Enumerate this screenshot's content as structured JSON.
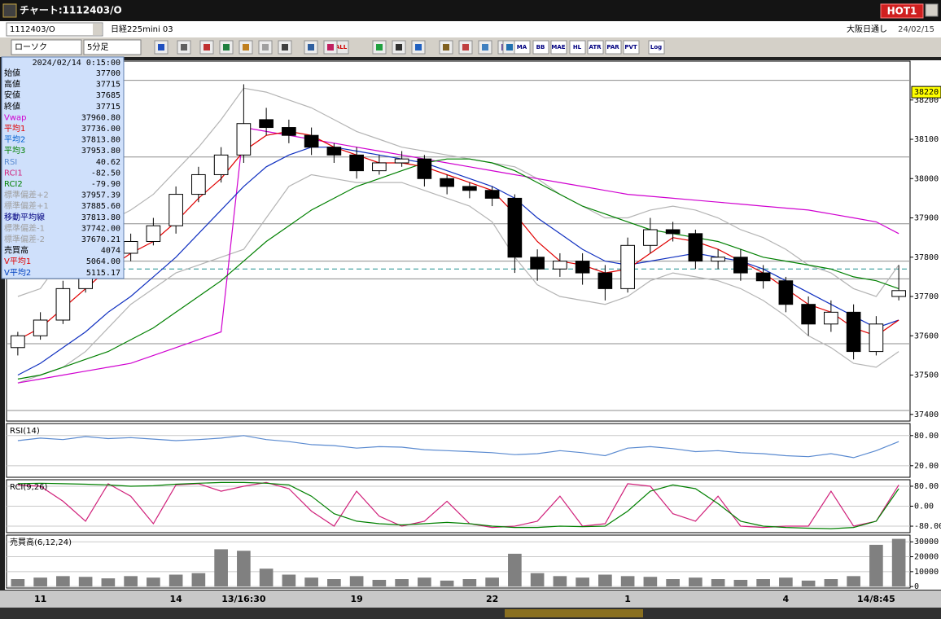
{
  "window": {
    "title": "チャート:1112403/O",
    "hot_button": "HOT1"
  },
  "toolbar": {
    "symbol": "1112403/O",
    "name": "日経225mini 03",
    "market": "大阪日通し",
    "date": "24/02/15",
    "chart_type": "ローソク",
    "interval": "5分足",
    "all_button": "ALL",
    "indicators": [
      "MA",
      "BB",
      "MAE",
      "HL",
      "ATR",
      "PAR",
      "PVT",
      "Log"
    ]
  },
  "info_panel": {
    "datetime": "2024/02/14 0:15:00",
    "rows": [
      {
        "label": "始値",
        "value": "37700",
        "color": "#000000"
      },
      {
        "label": "高値",
        "value": "37715",
        "color": "#000000"
      },
      {
        "label": "安値",
        "value": "37685",
        "color": "#000000"
      },
      {
        "label": "終値",
        "value": "37715",
        "color": "#000000"
      },
      {
        "label": "Vwap",
        "value": "37960.80",
        "color": "#d000d0"
      },
      {
        "label": "平均1",
        "value": "37736.00",
        "color": "#e00000"
      },
      {
        "label": "平均2",
        "value": "37813.80",
        "color": "#0060d0"
      },
      {
        "label": "平均3",
        "value": "37953.80",
        "color": "#008000"
      },
      {
        "label": "RSI",
        "value": "40.62",
        "color": "#5a8ad0"
      },
      {
        "label": "RCI1",
        "value": "-82.50",
        "color": "#d0207a"
      },
      {
        "label": "RCI2",
        "value": "-79.90",
        "color": "#008000"
      },
      {
        "label": "標準偏差+2",
        "value": "37957.39",
        "color": "#a0a0a0"
      },
      {
        "label": "標準偏差+1",
        "value": "37885.60",
        "color": "#a0a0a0"
      },
      {
        "label": "移動平均線",
        "value": "37813.80",
        "color": "#000080"
      },
      {
        "label": "標準偏差-1",
        "value": "37742.00",
        "color": "#a0a0a0"
      },
      {
        "label": "標準偏差-2",
        "value": "37670.21",
        "color": "#a0a0a0"
      },
      {
        "label": "売買高",
        "value": "4074",
        "color": "#000000"
      },
      {
        "label": "V平均1",
        "value": "5064.00",
        "color": "#e00000"
      },
      {
        "label": "V平均2",
        "value": "5115.17",
        "color": "#0040c0"
      }
    ]
  },
  "chart_data": {
    "type": "candlestick",
    "categories": [
      null,
      "11",
      null,
      null,
      null,
      null,
      null,
      "14",
      null,
      null,
      "13/16:30",
      null,
      null,
      null,
      null,
      "19",
      null,
      null,
      null,
      null,
      null,
      "22",
      null,
      null,
      null,
      null,
      null,
      "1",
      null,
      null,
      null,
      null,
      null,
      null,
      "4",
      null,
      null,
      null,
      "14/8:45",
      null
    ],
    "open": [
      37570,
      37600,
      37640,
      37720,
      37780,
      37810,
      37840,
      37880,
      37960,
      38010,
      38060,
      38150,
      38130,
      38110,
      38080,
      38060,
      38020,
      38040,
      38050,
      38000,
      37980,
      37970,
      37950,
      37800,
      37770,
      37790,
      37760,
      37720,
      37830,
      37870,
      37860,
      37790,
      37800,
      37760,
      37740,
      37680,
      37630,
      37660,
      37560,
      37700
    ],
    "high": [
      37610,
      37660,
      37740,
      37800,
      37830,
      37860,
      37900,
      37980,
      38030,
      38080,
      38240,
      38180,
      38150,
      38130,
      38090,
      38080,
      38060,
      38070,
      38060,
      38010,
      37990,
      37980,
      37960,
      37820,
      37810,
      37810,
      37780,
      37850,
      37900,
      37890,
      37870,
      37820,
      37820,
      37780,
      37750,
      37700,
      37690,
      37680,
      37650,
      37780
    ],
    "low": [
      37550,
      37590,
      37630,
      37710,
      37770,
      37790,
      37830,
      37860,
      37940,
      37990,
      38040,
      38110,
      38090,
      38060,
      38040,
      38000,
      38010,
      38030,
      37980,
      37960,
      37950,
      37930,
      37760,
      37740,
      37750,
      37730,
      37690,
      37710,
      37810,
      37840,
      37770,
      37770,
      37740,
      37720,
      37660,
      37600,
      37610,
      37540,
      37550,
      37690
    ],
    "close": [
      37600,
      37640,
      37720,
      37780,
      37810,
      37840,
      37880,
      37960,
      38010,
      38060,
      38140,
      38130,
      38110,
      38080,
      38060,
      38020,
      38040,
      38050,
      38000,
      37980,
      37970,
      37950,
      37800,
      37770,
      37790,
      37760,
      37720,
      37830,
      37870,
      37860,
      37790,
      37800,
      37760,
      37740,
      37680,
      37630,
      37660,
      37560,
      37630,
      37715
    ],
    "up_color": "#ffffff",
    "down_color": "#000000",
    "ylim": [
      37383,
      38299
    ],
    "yticks": [
      37400,
      37500,
      37600,
      37700,
      37800,
      37900,
      38000,
      38100,
      38200
    ],
    "levels": [
      38250,
      38055,
      37885,
      37790,
      37745,
      37580,
      37410
    ],
    "level_color": "#8c8c8c",
    "dashed_level": 37770,
    "dashed_color": "#1f8f8f",
    "price_tag": 38220,
    "series": [
      {
        "color": "#b4b4b4",
        "values": [
          37700,
          37720,
          37800,
          37860,
          37890,
          37920,
          37960,
          38020,
          38080,
          38150,
          38230,
          38220,
          38200,
          38180,
          38150,
          38120,
          38100,
          38080,
          38070,
          38060,
          38050,
          38040,
          38030,
          38000,
          37960,
          37930,
          37900,
          37900,
          37920,
          37930,
          37920,
          37900,
          37870,
          37850,
          37820,
          37780,
          37760,
          37720,
          37700,
          37780
        ]
      },
      {
        "color": "#b4b4b4",
        "values": [
          37480,
          37500,
          37520,
          37560,
          37620,
          37680,
          37720,
          37760,
          37780,
          37800,
          37820,
          37900,
          37980,
          38010,
          38000,
          37990,
          37990,
          37990,
          37970,
          37950,
          37930,
          37890,
          37800,
          37730,
          37700,
          37690,
          37680,
          37700,
          37740,
          37760,
          37750,
          37740,
          37720,
          37690,
          37650,
          37600,
          37570,
          37530,
          37520,
          37560
        ]
      },
      {
        "color": "#d000d0",
        "values": [
          37480,
          37490,
          37500,
          37510,
          37520,
          37530,
          37550,
          37570,
          37590,
          37610,
          38130,
          38120,
          38110,
          38100,
          38090,
          38080,
          38070,
          38060,
          38050,
          38040,
          38030,
          38020,
          38010,
          38000,
          37990,
          37980,
          37970,
          37960,
          37955,
          37950,
          37945,
          37940,
          37935,
          37930,
          37925,
          37920,
          37910,
          37900,
          37890,
          37860
        ]
      },
      {
        "color": "#008000",
        "values": [
          37490,
          37500,
          37520,
          37540,
          37560,
          37590,
          37620,
          37660,
          37700,
          37740,
          37790,
          37840,
          37880,
          37920,
          37950,
          37980,
          38000,
          38020,
          38040,
          38050,
          38050,
          38040,
          38020,
          37990,
          37960,
          37930,
          37910,
          37890,
          37870,
          37860,
          37850,
          37840,
          37820,
          37800,
          37790,
          37780,
          37770,
          37750,
          37740,
          37720
        ]
      },
      {
        "color": "#1030c0",
        "values": [
          37500,
          37530,
          37570,
          37610,
          37660,
          37700,
          37750,
          37800,
          37860,
          37920,
          37980,
          38030,
          38060,
          38080,
          38080,
          38070,
          38060,
          38050,
          38040,
          38020,
          38000,
          37980,
          37950,
          37900,
          37860,
          37820,
          37790,
          37780,
          37790,
          37800,
          37810,
          37800,
          37790,
          37770,
          37740,
          37710,
          37680,
          37650,
          37620,
          37640
        ]
      },
      {
        "color": "#e00000",
        "values": [
          37590,
          37620,
          37670,
          37720,
          37770,
          37810,
          37840,
          37890,
          37950,
          38000,
          38070,
          38110,
          38120,
          38110,
          38080,
          38060,
          38040,
          38040,
          38030,
          38010,
          37990,
          37970,
          37910,
          37840,
          37790,
          37780,
          37760,
          37770,
          37810,
          37850,
          37840,
          37820,
          37790,
          37760,
          37720,
          37680,
          37660,
          37620,
          37600,
          37640
        ]
      }
    ],
    "panels": [
      {
        "type": "line",
        "label": "RSI(14)",
        "ylim": [
          -3,
          104
        ],
        "yticks": [
          {
            "value": 20,
            "label": "20.00"
          },
          {
            "value": 80,
            "label": "80.00"
          }
        ],
        "series": [
          {
            "color": "#5a8ad0",
            "values": [
              70,
              75,
              72,
              78,
              74,
              76,
              73,
              70,
              72,
              75,
              80,
              72,
              68,
              62,
              60,
              55,
              58,
              57,
              52,
              50,
              48,
              46,
              42,
              44,
              50,
              46,
              40,
              55,
              58,
              54,
              48,
              50,
              46,
              44,
              40,
              38,
              44,
              36,
              50,
              68
            ]
          }
        ]
      },
      {
        "type": "line",
        "label": "RCI(9,26)",
        "ylim": [
          -106,
          106
        ],
        "yticks": [
          {
            "value": 80,
            "label": "80.00"
          },
          {
            "value": 0,
            "label": "0.00"
          },
          {
            "value": -80,
            "label": "-80.00"
          }
        ],
        "series": [
          {
            "color": "#d0207a",
            "values": [
              85,
              80,
              20,
              -60,
              90,
              40,
              -70,
              85,
              90,
              60,
              80,
              95,
              70,
              -20,
              -80,
              60,
              -40,
              -80,
              -60,
              20,
              -70,
              -85,
              -80,
              -60,
              40,
              -80,
              -70,
              90,
              80,
              -30,
              -60,
              40,
              -80,
              -85,
              -80,
              -80,
              60,
              -80,
              -60,
              85
            ]
          },
          {
            "color": "#008000",
            "values": [
              90,
              92,
              90,
              88,
              85,
              80,
              82,
              88,
              92,
              95,
              95,
              92,
              85,
              40,
              -30,
              -60,
              -70,
              -75,
              -70,
              -65,
              -70,
              -80,
              -85,
              -85,
              -80,
              -82,
              -80,
              -20,
              60,
              85,
              70,
              10,
              -60,
              -80,
              -85,
              -88,
              -90,
              -85,
              -60,
              70
            ]
          }
        ]
      },
      {
        "type": "bar",
        "label": "売買高(6,12,24)",
        "ylim": [
          -1000,
          34500
        ],
        "yticks": [
          0,
          10000,
          20000,
          30000
        ],
        "color": "#808080",
        "values": [
          5000,
          6000,
          7000,
          6500,
          5500,
          7000,
          6000,
          8000,
          9000,
          25000,
          24000,
          12000,
          8000,
          6000,
          5000,
          7000,
          4500,
          5000,
          6000,
          4000,
          5000,
          6000,
          22000,
          9000,
          7000,
          6000,
          8000,
          7000,
          6500,
          5000,
          6000,
          5000,
          4500,
          5000,
          6000,
          4000,
          5000,
          7000,
          28000,
          32000
        ]
      }
    ]
  }
}
